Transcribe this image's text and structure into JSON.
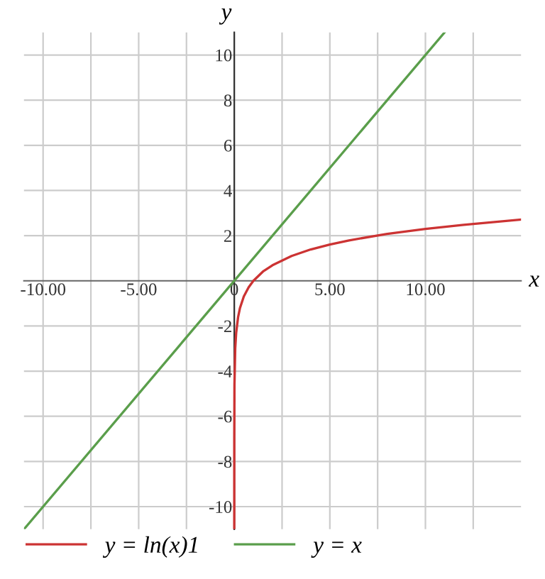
{
  "chart_data": {
    "type": "line",
    "xlabel": "x",
    "ylabel": "y",
    "xlim": [
      -11,
      15
    ],
    "ylim": [
      -11,
      11
    ],
    "xticks": [
      {
        "value": -10,
        "label": "-10.00"
      },
      {
        "value": -7.5,
        "label": null
      },
      {
        "value": -5,
        "label": "-5.00"
      },
      {
        "value": -2.5,
        "label": null
      },
      0,
      {
        "value": 2.5,
        "label": null
      },
      {
        "value": 5,
        "label": "5.00"
      },
      {
        "value": 7.5,
        "label": null
      },
      {
        "value": 10,
        "label": "10.00"
      },
      {
        "value": 12.5,
        "label": null
      }
    ],
    "yticks": [
      -10,
      -8,
      -6,
      -4,
      -2,
      2,
      4,
      6,
      8,
      10
    ],
    "grid": true,
    "legend": "bottom left",
    "marker": "none",
    "line_style": "solid",
    "series": [
      {
        "name": "y = ln(x)1",
        "color": "#cc3333",
        "x": [
          1.67e-05,
          0.0001,
          0.001,
          0.01,
          0.05,
          0.1,
          0.2,
          0.3,
          0.5,
          0.75,
          1,
          1.5,
          2,
          3,
          4,
          5,
          6,
          8,
          10,
          12,
          15
        ],
        "values": [
          -11,
          -9.21,
          -6.91,
          -4.61,
          -3.0,
          -2.3,
          -1.61,
          -1.2,
          -0.69,
          -0.29,
          0,
          0.41,
          0.69,
          1.1,
          1.39,
          1.61,
          1.79,
          2.08,
          2.3,
          2.48,
          2.71
        ]
      },
      {
        "name": "y = x",
        "color": "#5a9e4b",
        "x": [
          -11,
          11
        ],
        "values": [
          -11,
          11
        ]
      }
    ]
  }
}
